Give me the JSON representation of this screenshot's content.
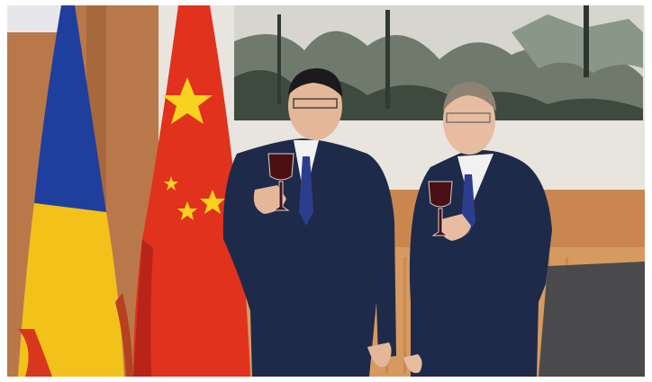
{
  "photo": {
    "subject": "",
    "colors": {
      "wall_wood": "#c98a55",
      "wall_light": "#e6e1da",
      "romania_blue": "#1f3f9e",
      "romania_yellow": "#f2c21b",
      "romania_red": "#d9361f",
      "china_red": "#e0321d",
      "china_star": "#f7d21e",
      "suit_navy": "#1e2a4a",
      "shirt_white": "#f1f1f1",
      "tie_blue": "#2b3e8e",
      "wine": "#4a0f12"
    }
  }
}
